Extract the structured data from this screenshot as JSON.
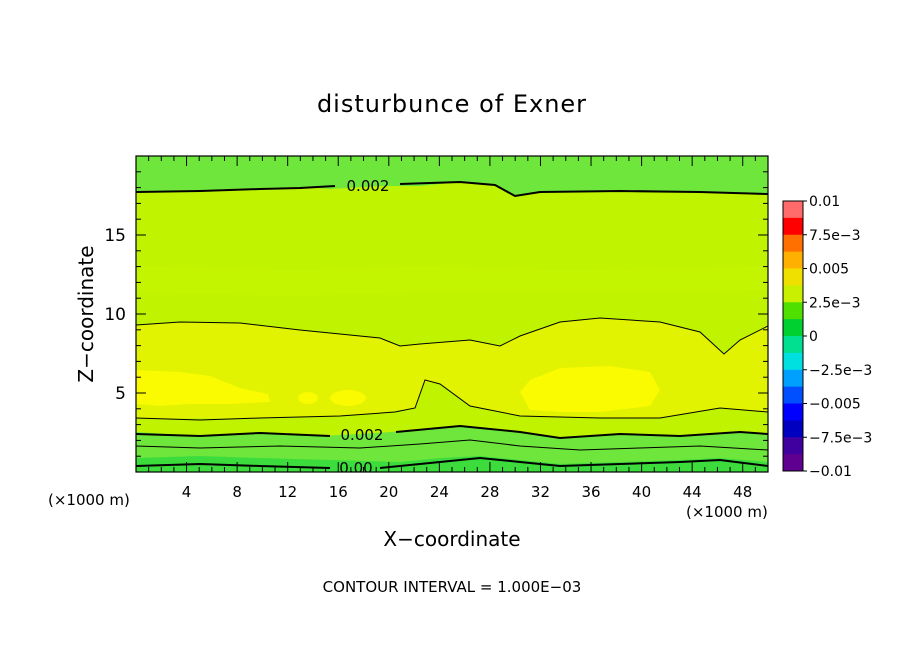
{
  "chart_data": {
    "type": "contour",
    "title": "disturbunce of Exner",
    "xlabel": "X−coordinate",
    "ylabel": "Z−coordinate",
    "x_unit": "(×1000 m)",
    "y_unit": "(×1000 m)",
    "xlim": [
      0,
      50
    ],
    "ylim": [
      0,
      20
    ],
    "x_ticks": [
      "4",
      "8",
      "12",
      "16",
      "20",
      "24",
      "28",
      "32",
      "36",
      "40",
      "44",
      "48"
    ],
    "y_ticks": [
      "5",
      "10",
      "15"
    ],
    "colorbar": {
      "labels": [
        "0.01",
        "7.5e−3",
        "0.005",
        "2.5e−3",
        "0",
        "−2.5e−3",
        "−0.005",
        "−7.5e−3",
        "−0.01"
      ],
      "colors": [
        "#ff6b6b",
        "#ff0000",
        "#ff7000",
        "#ffb000",
        "#f0e000",
        "#c8f000",
        "#50e000",
        "#00d030",
        "#00e090",
        "#00e0e0",
        "#00a0ff",
        "#0050ff",
        "#0000ff",
        "#0000c0",
        "#4000a0",
        "#600090"
      ]
    },
    "contour_labels": [
      "0.002",
      "0.002",
      "0.00"
    ],
    "footer": "CONTOUR INTERVAL = 1.000E−03",
    "field_bands": [
      {
        "range": "0.001 to 0.002",
        "region": "upper 17.5–19.5",
        "color": "#6fe63c"
      },
      {
        "range": "0.002 to 0.003",
        "region": "z 9.5–17.5",
        "color": "#bff300"
      },
      {
        "range": "0.003 to 0.004",
        "region": "z 3.5–9.5",
        "color": "#e1f300"
      },
      {
        "range": "0.004 to 0.005",
        "region": "bulges near z 5",
        "color": "#fafa00"
      },
      {
        "range": "0 to 0.002",
        "region": "near ground",
        "color": "#3cdc3c"
      }
    ]
  }
}
